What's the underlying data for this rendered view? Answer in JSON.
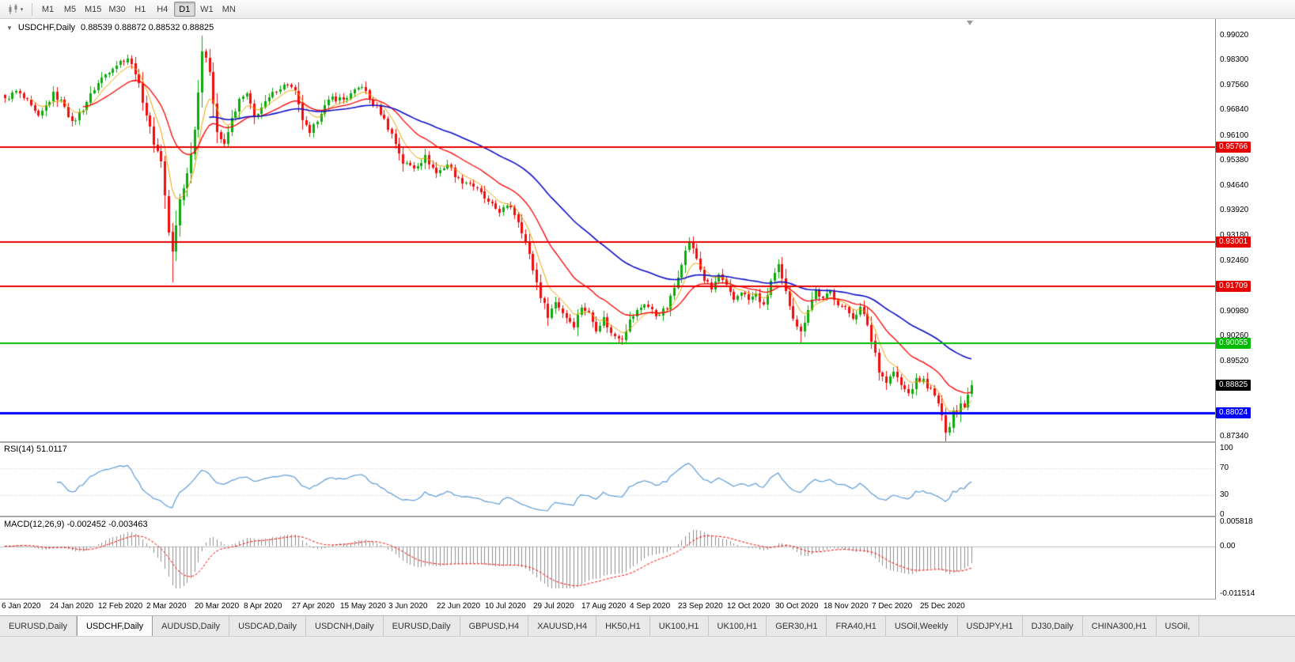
{
  "icons": {
    "dropdown": "▼",
    "caret": "▾"
  },
  "toolbar": {
    "timeframes": [
      "M1",
      "M5",
      "M15",
      "M30",
      "H1",
      "H4",
      "D1",
      "W1",
      "MN"
    ],
    "active_timeframe": "D1"
  },
  "chart": {
    "title": "USDCHF,Daily",
    "ohlc": "0.88539 0.88872 0.88532 0.88825",
    "current_price": "0.88825",
    "current_price_color": "#000000",
    "y_ticks": [
      "0.99020",
      "0.98300",
      "0.97560",
      "0.96840",
      "0.96100",
      "0.95380",
      "0.94640",
      "0.93920",
      "0.93180",
      "0.92460",
      "0.91720",
      "0.90980",
      "0.90260",
      "0.89520",
      "0.88780",
      "0.88040",
      "0.87340"
    ],
    "x_labels": [
      "6 Jan 2020",
      "24 Jan 2020",
      "12 Feb 2020",
      "2 Mar 2020",
      "20 Mar 2020",
      "8 Apr 2020",
      "27 Apr 2020",
      "15 May 2020",
      "3 Jun 2020",
      "22 Jun 2020",
      "10 Jul 2020",
      "29 Jul 2020",
      "17 Aug 2020",
      "4 Sep 2020",
      "23 Sep 2020",
      "12 Oct 2020",
      "30 Oct 2020",
      "18 Nov 2020",
      "7 Dec 2020",
      "25 Dec 2020"
    ]
  },
  "rsi_panel": {
    "label": "RSI(14) 51.0117",
    "y_ticks": [
      "100",
      "70",
      "30",
      "0"
    ]
  },
  "macd_panel": {
    "label": "MACD(12,26,9) -0.002452 -0.003463",
    "y_ticks": [
      "0.005818",
      "0.00",
      "-0.011514"
    ]
  },
  "tabs": [
    {
      "label": "EURUSD,Daily",
      "active": false
    },
    {
      "label": "USDCHF,Daily",
      "active": true
    },
    {
      "label": "AUDUSD,Daily",
      "active": false
    },
    {
      "label": "USDCAD,Daily",
      "active": false
    },
    {
      "label": "USDCNH,Daily",
      "active": false
    },
    {
      "label": "EURUSD,Daily",
      "active": false
    },
    {
      "label": "GBPUSD,H4",
      "active": false
    },
    {
      "label": "XAUUSD,H4",
      "active": false
    },
    {
      "label": "HK50,H1",
      "active": false
    },
    {
      "label": "UK100,H1",
      "active": false
    },
    {
      "label": "UK100,H1",
      "active": false
    },
    {
      "label": "GER30,H1",
      "active": false
    },
    {
      "label": "FRA40,H1",
      "active": false
    },
    {
      "label": "USOil,Weekly",
      "active": false
    },
    {
      "label": "USDJPY,H1",
      "active": false
    },
    {
      "label": "DJ30,Daily",
      "active": false
    },
    {
      "label": "CHINA300,H1",
      "active": false
    },
    {
      "label": "USOil,",
      "active": false
    }
  ],
  "chart_data": {
    "type": "candlestick",
    "symbol": "USDCHF",
    "period": "Daily",
    "n_candles": 261,
    "x_label_step": 13,
    "ylim": [
      0.872,
      0.995
    ],
    "up_color": "#0caa0c",
    "down_color": "#f20c0c",
    "close_anchors": [
      [
        0,
        0.9718
      ],
      [
        3,
        0.9738
      ],
      [
        6,
        0.9708
      ],
      [
        9,
        0.9663
      ],
      [
        13,
        0.973
      ],
      [
        16,
        0.97
      ],
      [
        18,
        0.9645
      ],
      [
        21,
        0.969
      ],
      [
        24,
        0.9748
      ],
      [
        26,
        0.9778
      ],
      [
        29,
        0.9812
      ],
      [
        33,
        0.9838
      ],
      [
        35,
        0.9795
      ],
      [
        38,
        0.9672
      ],
      [
        40,
        0.959
      ],
      [
        42,
        0.9538
      ],
      [
        44,
        0.933
      ],
      [
        45,
        0.9268
      ],
      [
        47,
        0.9425
      ],
      [
        49,
        0.95
      ],
      [
        51,
        0.9628
      ],
      [
        53,
        0.9858
      ],
      [
        55,
        0.98
      ],
      [
        57,
        0.9622
      ],
      [
        59,
        0.958
      ],
      [
        61,
        0.9658
      ],
      [
        63,
        0.9712
      ],
      [
        65,
        0.973
      ],
      [
        67,
        0.9665
      ],
      [
        70,
        0.9705
      ],
      [
        73,
        0.9745
      ],
      [
        76,
        0.9762
      ],
      [
        78,
        0.9735
      ],
      [
        80,
        0.9658
      ],
      [
        82,
        0.9612
      ],
      [
        85,
        0.9682
      ],
      [
        88,
        0.9722
      ],
      [
        91,
        0.9715
      ],
      [
        94,
        0.9738
      ],
      [
        96,
        0.9758
      ],
      [
        98,
        0.9715
      ],
      [
        101,
        0.9678
      ],
      [
        104,
        0.9615
      ],
      [
        107,
        0.9532
      ],
      [
        110,
        0.9518
      ],
      [
        113,
        0.9548
      ],
      [
        116,
        0.9502
      ],
      [
        119,
        0.9528
      ],
      [
        122,
        0.9482
      ],
      [
        125,
        0.9472
      ],
      [
        128,
        0.9442
      ],
      [
        130,
        0.9412
      ],
      [
        133,
        0.9392
      ],
      [
        136,
        0.9405
      ],
      [
        138,
        0.9362
      ],
      [
        140,
        0.9302
      ],
      [
        142,
        0.9222
      ],
      [
        144,
        0.9142
      ],
      [
        146,
        0.9088
      ],
      [
        148,
        0.9125
      ],
      [
        151,
        0.9082
      ],
      [
        153,
        0.9058
      ],
      [
        155,
        0.9112
      ],
      [
        157,
        0.9092
      ],
      [
        159,
        0.9048
      ],
      [
        161,
        0.9078
      ],
      [
        163,
        0.9032
      ],
      [
        166,
        0.9022
      ],
      [
        168,
        0.9072
      ],
      [
        170,
        0.9098
      ],
      [
        172,
        0.9122
      ],
      [
        175,
        0.9088
      ],
      [
        178,
        0.9108
      ],
      [
        180,
        0.9168
      ],
      [
        182,
        0.9242
      ],
      [
        184,
        0.9302
      ],
      [
        186,
        0.9252
      ],
      [
        188,
        0.9192
      ],
      [
        190,
        0.9162
      ],
      [
        192,
        0.9205
      ],
      [
        194,
        0.9168
      ],
      [
        196,
        0.9132
      ],
      [
        198,
        0.9158
      ],
      [
        200,
        0.9132
      ],
      [
        202,
        0.9148
      ],
      [
        204,
        0.9112
      ],
      [
        206,
        0.9188
      ],
      [
        208,
        0.9228
      ],
      [
        210,
        0.9152
      ],
      [
        212,
        0.9082
      ],
      [
        214,
        0.9038
      ],
      [
        216,
        0.9108
      ],
      [
        218,
        0.9158
      ],
      [
        220,
        0.9132
      ],
      [
        222,
        0.9155
      ],
      [
        224,
        0.9122
      ],
      [
        226,
        0.9105
      ],
      [
        228,
        0.9082
      ],
      [
        230,
        0.9108
      ],
      [
        232,
        0.9062
      ],
      [
        233,
        0.9012
      ],
      [
        234,
        0.8978
      ],
      [
        235,
        0.8928
      ],
      [
        237,
        0.8892
      ],
      [
        239,
        0.8922
      ],
      [
        241,
        0.8882
      ],
      [
        243,
        0.8858
      ],
      [
        245,
        0.8898
      ],
      [
        247,
        0.8898
      ],
      [
        249,
        0.8868
      ],
      [
        251,
        0.8832
      ],
      [
        252,
        0.8788
      ],
      [
        253,
        0.8752
      ],
      [
        254,
        0.8768
      ],
      [
        255,
        0.8812
      ],
      [
        256,
        0.8798
      ],
      [
        257,
        0.8838
      ],
      [
        258,
        0.8822
      ],
      [
        259,
        0.8862
      ],
      [
        260,
        0.88825
      ]
    ],
    "extremes": [
      {
        "i": 45,
        "low": 0.9183
      },
      {
        "i": 53,
        "high": 0.9902
      },
      {
        "i": 166,
        "low": 0.8999
      },
      {
        "i": 214,
        "low": 0.9004
      },
      {
        "i": 233,
        "low": 0.8996
      },
      {
        "i": 253,
        "low": 0.8734
      }
    ],
    "moving_averages": [
      {
        "name": "fast-ma",
        "period": 7,
        "color": "#e8a200",
        "width": 1
      },
      {
        "name": "medium-ma",
        "period": 21,
        "color": "#ff0000",
        "width": 1.3
      },
      {
        "name": "slow-ma",
        "period": 55,
        "color": "#0d0dc8",
        "width": 1.6
      }
    ],
    "hlines": [
      {
        "value": 0.95766,
        "label": "0.95766",
        "color": "#e60000",
        "width": 2
      },
      {
        "value": 0.93001,
        "label": "0.93001",
        "color": "#e60000",
        "width": 2
      },
      {
        "value": 0.91709,
        "label": "0.91709",
        "color": "#e60000",
        "width": 2
      },
      {
        "value": 0.90055,
        "label": "0.90055",
        "color": "#00bb00",
        "width": 2
      },
      {
        "value": 0.88024,
        "label": "0.88024",
        "color": "#0000ff",
        "width": 3
      }
    ],
    "rsi": {
      "period": 14,
      "range": [
        0,
        100
      ],
      "dotted_levels": [
        70,
        30
      ],
      "color": "#5b9bd5"
    },
    "macd": {
      "fast": 12,
      "slow": 26,
      "signal": 9,
      "range": [
        -0.011514,
        0.005818
      ],
      "histogram_color": "#8f8f8f",
      "signal_color": "#ff0000"
    }
  }
}
